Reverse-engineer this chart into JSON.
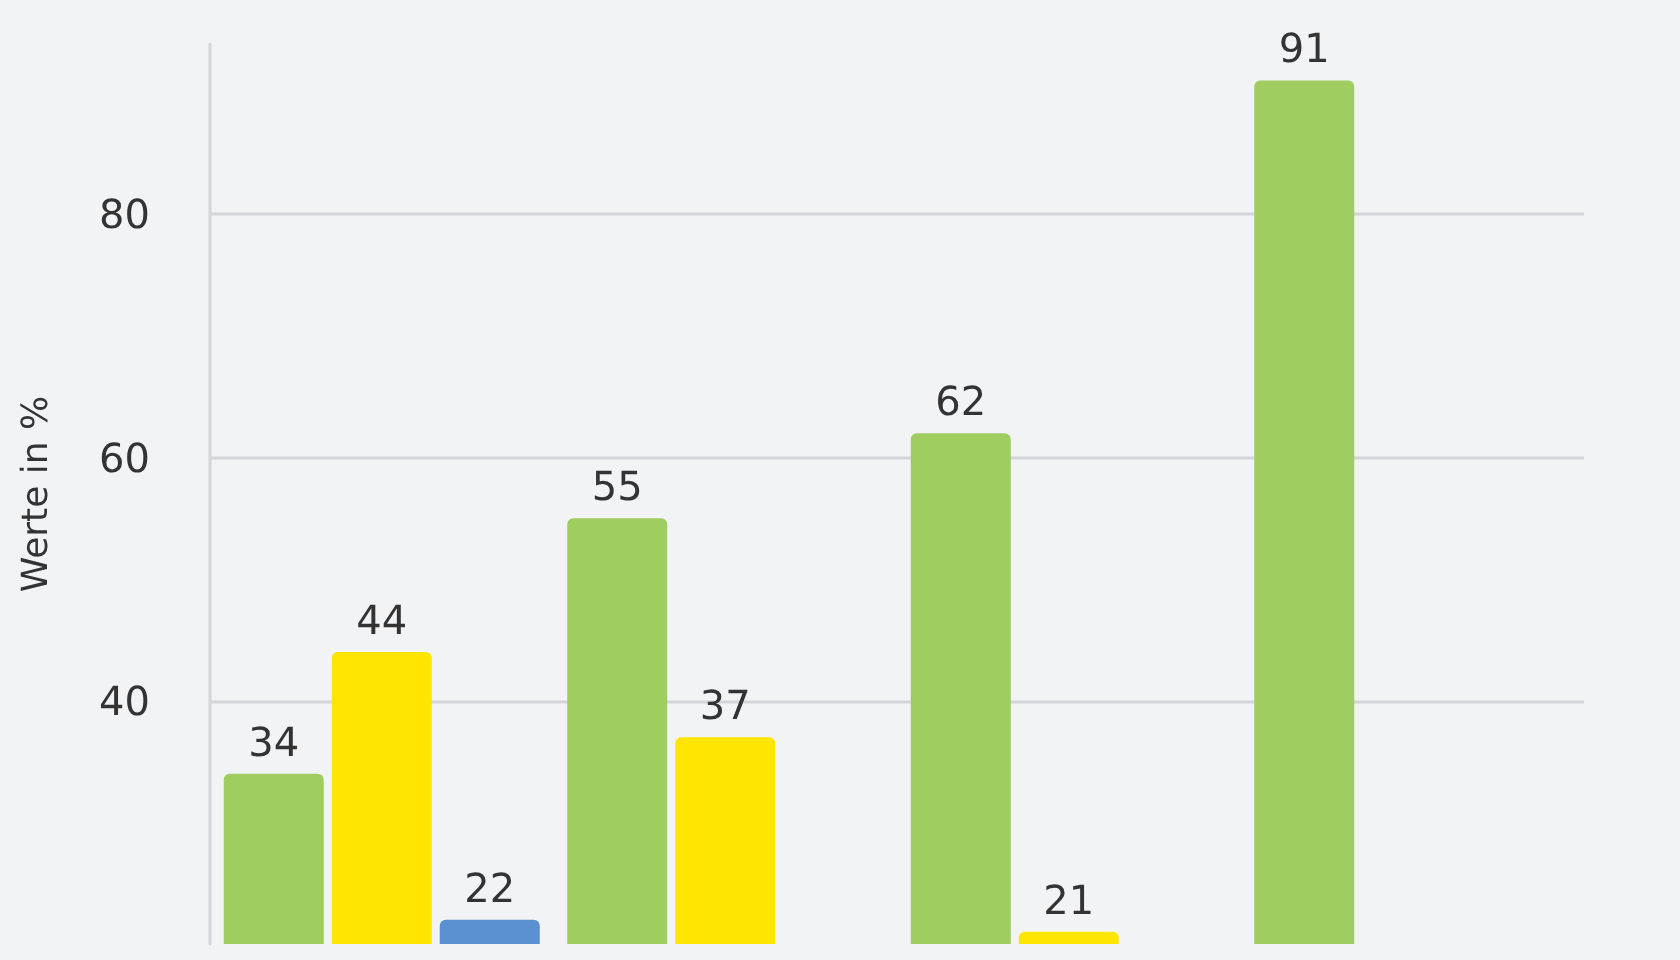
{
  "chart_data": {
    "type": "bar",
    "ylabel": "Werte in %",
    "categories": [
      null,
      null,
      null,
      null
    ],
    "series": [
      {
        "color": "#a0cd5f",
        "values": [
          34,
          55,
          62,
          91
        ]
      },
      {
        "color": "#ffe500",
        "values": [
          44,
          37,
          21,
          null
        ]
      },
      {
        "color": "#5a8fd0",
        "values": [
          22,
          null,
          null,
          null
        ]
      }
    ],
    "ylim": [
      20,
      94
    ],
    "yticks": [
      40,
      60,
      80
    ],
    "grid": "y",
    "data_labels": true
  }
}
